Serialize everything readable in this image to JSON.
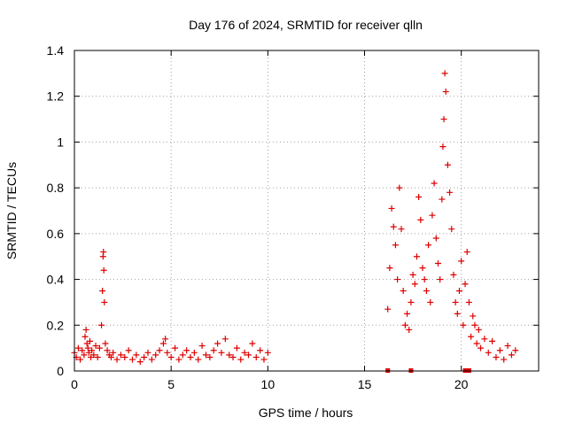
{
  "chart_data": {
    "type": "scatter",
    "title": "Day 176 of 2024, SRMTID for receiver qlln",
    "xlabel": "GPS time / hours",
    "ylabel": "SRMTID / TECUs",
    "xlim": [
      0,
      24
    ],
    "ylim": [
      0,
      1.4
    ],
    "x_ticks": [
      0,
      5,
      10,
      15,
      20
    ],
    "x_tick_labels": [
      "0",
      "5",
      "10",
      "15",
      "20"
    ],
    "y_ticks": [
      0,
      0.2,
      0.4,
      0.6,
      0.8,
      1,
      1.2,
      1.4
    ],
    "y_tick_labels": [
      "0",
      "0.2",
      "0.4",
      "0.6",
      "0.8",
      "1",
      "1.2",
      "1.4"
    ],
    "grid": true,
    "marker": "+",
    "colors": {
      "points": "#dd0000",
      "grid": "#a0a0a0",
      "axes": "#000000"
    },
    "series": [
      {
        "name": "SRMTID",
        "x": [
          0.0,
          0.1,
          0.2,
          0.3,
          0.4,
          0.5,
          0.55,
          0.6,
          0.65,
          0.7,
          0.75,
          0.8,
          0.85,
          0.9,
          1.0,
          1.1,
          1.2,
          1.3,
          1.4,
          1.45,
          1.48,
          1.5,
          1.52,
          1.55,
          1.6,
          1.7,
          1.8,
          1.9,
          2.0,
          2.2,
          2.4,
          2.6,
          2.8,
          3.0,
          3.2,
          3.4,
          3.6,
          3.8,
          4.0,
          4.2,
          4.4,
          4.6,
          4.7,
          4.8,
          5.0,
          5.2,
          5.4,
          5.6,
          5.8,
          6.0,
          6.2,
          6.4,
          6.6,
          6.8,
          7.0,
          7.2,
          7.4,
          7.6,
          7.8,
          8.0,
          8.2,
          8.4,
          8.6,
          8.8,
          9.0,
          9.2,
          9.4,
          9.6,
          9.8,
          10.0,
          16.2,
          16.3,
          16.4,
          16.5,
          16.6,
          16.7,
          16.8,
          16.9,
          17.0,
          17.1,
          17.2,
          17.3,
          17.4,
          17.5,
          17.6,
          17.7,
          17.8,
          17.9,
          18.0,
          18.1,
          18.2,
          18.3,
          18.4,
          18.5,
          18.6,
          18.7,
          18.8,
          18.9,
          19.0,
          19.05,
          19.1,
          19.15,
          19.2,
          19.3,
          19.4,
          19.5,
          19.6,
          19.7,
          19.8,
          19.9,
          20.0,
          20.1,
          20.2,
          20.3,
          20.4,
          20.5,
          20.6,
          20.7,
          20.8,
          20.9,
          21.0,
          21.2,
          21.4,
          21.6,
          21.8,
          22.0,
          22.2,
          22.4,
          22.6,
          22.8
        ],
        "y": [
          0.08,
          0.06,
          0.1,
          0.05,
          0.09,
          0.07,
          0.15,
          0.18,
          0.12,
          0.1,
          0.08,
          0.13,
          0.06,
          0.09,
          0.07,
          0.11,
          0.06,
          0.1,
          0.2,
          0.35,
          0.5,
          0.52,
          0.44,
          0.3,
          0.12,
          0.09,
          0.07,
          0.06,
          0.08,
          0.05,
          0.07,
          0.06,
          0.09,
          0.05,
          0.07,
          0.04,
          0.06,
          0.08,
          0.05,
          0.07,
          0.09,
          0.12,
          0.14,
          0.08,
          0.06,
          0.1,
          0.05,
          0.07,
          0.09,
          0.06,
          0.08,
          0.05,
          0.11,
          0.07,
          0.06,
          0.09,
          0.12,
          0.08,
          0.14,
          0.07,
          0.06,
          0.1,
          0.05,
          0.08,
          0.07,
          0.12,
          0.06,
          0.09,
          0.05,
          0.08,
          0.27,
          0.45,
          0.71,
          0.63,
          0.55,
          0.4,
          0.8,
          0.62,
          0.35,
          0.2,
          0.25,
          0.18,
          0.3,
          0.42,
          0.38,
          0.5,
          0.76,
          0.66,
          0.45,
          0.4,
          0.35,
          0.55,
          0.3,
          0.68,
          0.82,
          0.58,
          0.47,
          0.4,
          0.75,
          0.98,
          1.1,
          1.3,
          1.22,
          0.9,
          0.78,
          0.62,
          0.42,
          0.3,
          0.25,
          0.35,
          0.48,
          0.2,
          0.38,
          0.52,
          0.3,
          0.15,
          0.24,
          0.2,
          0.12,
          0.18,
          0.1,
          0.14,
          0.08,
          0.13,
          0.06,
          0.09,
          0.05,
          0.11,
          0.07,
          0.09
        ]
      }
    ],
    "baseline_marks_x": [
      16.2,
      17.4,
      20.2,
      20.4
    ]
  }
}
